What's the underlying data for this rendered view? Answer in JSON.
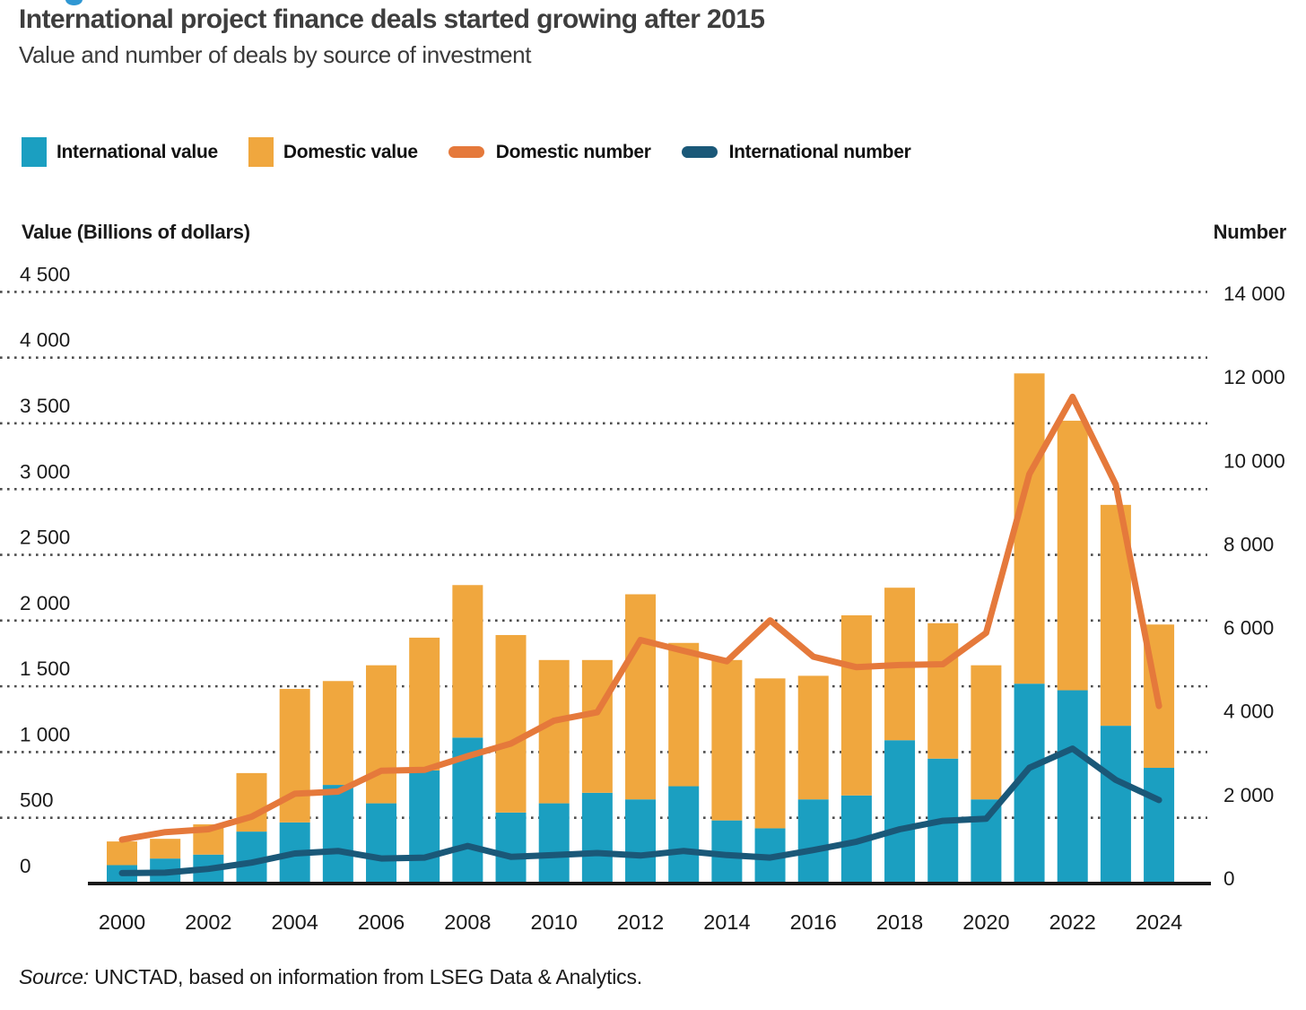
{
  "header": {
    "title": "International project finance deals started growing after 2015",
    "subtitle": "Value and number of deals by source of investment"
  },
  "misc": {
    "top_fragment_color": "#2f97d3"
  },
  "legend": [
    {
      "label": "International value",
      "shape": "square",
      "color": "#1b9fc1"
    },
    {
      "label": "Domestic value",
      "shape": "square",
      "color": "#f0a73e"
    },
    {
      "label": "Domestic number",
      "shape": "capsule",
      "color": "#e5793b"
    },
    {
      "label": "International number",
      "shape": "capsule",
      "color": "#1a5878"
    }
  ],
  "axes": {
    "left_title": "Value (Billions of dollars)",
    "right_title": "Number",
    "left_ticks": [
      {
        "label": "4 500",
        "value": 4500
      },
      {
        "label": "4 000",
        "value": 4000
      },
      {
        "label": "3 500",
        "value": 3500
      },
      {
        "label": "3 000",
        "value": 3000
      },
      {
        "label": "2 500",
        "value": 2500
      },
      {
        "label": "2 000",
        "value": 2000
      },
      {
        "label": "1 500",
        "value": 1500
      },
      {
        "label": "1 000",
        "value": 1000
      },
      {
        "label": "500",
        "value": 500
      },
      {
        "label": "0",
        "value": 0
      }
    ],
    "right_ticks": [
      {
        "label": "14 000",
        "value": 14000
      },
      {
        "label": "12 000",
        "value": 12000
      },
      {
        "label": "10 000",
        "value": 10000
      },
      {
        "label": "8 000",
        "value": 8000
      },
      {
        "label": "6 000",
        "value": 6000
      },
      {
        "label": "4 000",
        "value": 4000
      },
      {
        "label": "2 000",
        "value": 2000
      },
      {
        "label": "0",
        "value": 0
      }
    ],
    "x_ticks": [
      {
        "label": "2000",
        "year": 2000
      },
      {
        "label": "2002",
        "year": 2002
      },
      {
        "label": "2004",
        "year": 2004
      },
      {
        "label": "2006",
        "year": 2006
      },
      {
        "label": "2008",
        "year": 2008
      },
      {
        "label": "2010",
        "year": 2010
      },
      {
        "label": "2012",
        "year": 2012
      },
      {
        "label": "2014",
        "year": 2014
      },
      {
        "label": "2016",
        "year": 2016
      },
      {
        "label": "2018",
        "year": 2018
      },
      {
        "label": "2020",
        "year": 2020
      },
      {
        "label": "2022",
        "year": 2022
      },
      {
        "label": "2024",
        "year": 2024
      }
    ]
  },
  "chart_data": {
    "type": "combo",
    "bar_mode": "stacked",
    "grid": "dotted-horizontal",
    "legend_position": "top",
    "categories": [
      2000,
      2001,
      2002,
      2003,
      2004,
      2005,
      2006,
      2007,
      2008,
      2009,
      2010,
      2011,
      2012,
      2013,
      2014,
      2015,
      2016,
      2017,
      2018,
      2019,
      2020,
      2021,
      2022,
      2023,
      2024
    ],
    "left_axis": {
      "title": "Value (Billions of dollars)",
      "min": 0,
      "max": 4500,
      "step": 500
    },
    "right_axis": {
      "title": "Number",
      "min": 0,
      "max": 14000,
      "step": 2000
    },
    "series": [
      {
        "name": "International value",
        "type": "bar",
        "axis": "left",
        "color": "#1b9fc1",
        "values": [
          140,
          190,
          220,
          395,
          465,
          750,
          610,
          860,
          1110,
          540,
          610,
          690,
          640,
          740,
          480,
          420,
          640,
          670,
          1090,
          950,
          640,
          1520,
          1470,
          1200,
          880
        ]
      },
      {
        "name": "Domestic value",
        "type": "bar",
        "axis": "left",
        "color": "#f0a73e",
        "values": [
          180,
          150,
          230,
          445,
          1015,
          790,
          1050,
          1010,
          1160,
          1350,
          1090,
          1010,
          1560,
          1090,
          1220,
          1140,
          940,
          1370,
          1160,
          1030,
          1020,
          2360,
          2050,
          1680,
          1090
        ]
      },
      {
        "name": "Domestic number",
        "type": "line",
        "axis": "right",
        "color": "#e5793b",
        "values": [
          1050,
          1230,
          1300,
          1600,
          2150,
          2200,
          2700,
          2720,
          3050,
          3350,
          3900,
          4100,
          5830,
          5570,
          5320,
          6300,
          5430,
          5180,
          5230,
          5250,
          6000,
          9800,
          11650,
          9550,
          4250
        ]
      },
      {
        "name": "International number",
        "type": "line",
        "axis": "right",
        "color": "#1a5878",
        "values": [
          250,
          260,
          350,
          500,
          720,
          780,
          600,
          620,
          900,
          640,
          680,
          730,
          670,
          780,
          680,
          620,
          800,
          1000,
          1300,
          1500,
          1550,
          2770,
          3230,
          2480,
          2000
        ]
      }
    ]
  },
  "source": {
    "prefix": "Source:",
    "text": " UNCTAD, based on information from LSEG Data & Analytics."
  }
}
